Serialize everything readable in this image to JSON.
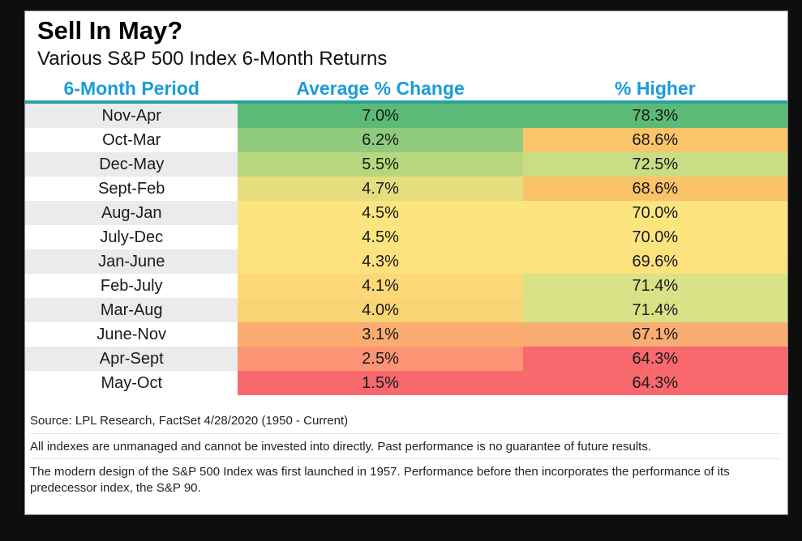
{
  "page": {
    "title": "Sell In May?",
    "subtitle": "Various S&P 500 Index 6-Month Returns"
  },
  "colors": {
    "header_text_blue": "#1a9cd8",
    "header_rule_teal": "#2aa0a0",
    "row_stripe_gray": "#ebebeb",
    "row_stripe_white": "#ffffff",
    "frame_black": "#0e0e0e"
  },
  "table": {
    "headers": [
      "6-Month Period",
      "Average % Change",
      "% Higher"
    ],
    "rows": [
      {
        "period": "Nov-Apr",
        "avg": "7.0%",
        "higher": "78.3%",
        "avg_color": "#5bbb76",
        "higher_color": "#5bbb76",
        "period_bg": "#ebebeb"
      },
      {
        "period": "Oct-Mar",
        "avg": "6.2%",
        "higher": "68.6%",
        "avg_color": "#8fca7e",
        "higher_color": "#fac469",
        "period_bg": "#ffffff"
      },
      {
        "period": "Dec-May",
        "avg": "5.5%",
        "higher": "72.5%",
        "avg_color": "#b8d77d",
        "higher_color": "#c9dd85",
        "period_bg": "#ebebeb"
      },
      {
        "period": "Sept-Feb",
        "avg": "4.7%",
        "higher": "68.6%",
        "avg_color": "#e5de7e",
        "higher_color": "#f9c367",
        "period_bg": "#ffffff"
      },
      {
        "period": "Aug-Jan",
        "avg": "4.5%",
        "higher": "70.0%",
        "avg_color": "#fce47f",
        "higher_color": "#fce47f",
        "period_bg": "#ebebeb"
      },
      {
        "period": "July-Dec",
        "avg": "4.5%",
        "higher": "70.0%",
        "avg_color": "#fce47f",
        "higher_color": "#fce47f",
        "period_bg": "#ffffff"
      },
      {
        "period": "Jan-June",
        "avg": "4.3%",
        "higher": "69.6%",
        "avg_color": "#fce17d",
        "higher_color": "#fce17d",
        "period_bg": "#ebebeb"
      },
      {
        "period": "Feb-July",
        "avg": "4.1%",
        "higher": "71.4%",
        "avg_color": "#fcd878",
        "higher_color": "#d9e287",
        "period_bg": "#ffffff"
      },
      {
        "period": "Mar-Aug",
        "avg": "4.0%",
        "higher": "71.4%",
        "avg_color": "#fbd475",
        "higher_color": "#d9e287",
        "period_bg": "#ebebeb"
      },
      {
        "period": "June-Nov",
        "avg": "3.1%",
        "higher": "67.1%",
        "avg_color": "#fbad71",
        "higher_color": "#f9ad74",
        "period_bg": "#ffffff"
      },
      {
        "period": "Apr-Sept",
        "avg": "2.5%",
        "higher": "64.3%",
        "avg_color": "#fb9474",
        "higher_color": "#f7696d",
        "period_bg": "#ebebeb"
      },
      {
        "period": "May-Oct",
        "avg": "1.5%",
        "higher": "64.3%",
        "avg_color": "#f7696d",
        "higher_color": "#f7696d",
        "period_bg": "#ffffff"
      }
    ]
  },
  "footnotes": [
    "Source: LPL Research, FactSet 4/28/2020 (1950 - Current)",
    "All indexes are unmanaged and cannot be invested into directly. Past performance is no guarantee of future results.",
    "The modern design of the S&P 500 Index was first launched in 1957. Performance before then incorporates the performance of its predecessor index, the S&P 90."
  ],
  "chart_data": {
    "type": "table",
    "title": "Sell In May?",
    "subtitle": "Various S&P 500 Index 6-Month Returns",
    "columns": [
      "6-Month Period",
      "Average % Change",
      "% Higher"
    ],
    "rows": [
      [
        "Nov-Apr",
        7.0,
        78.3
      ],
      [
        "Oct-Mar",
        6.2,
        68.6
      ],
      [
        "Dec-May",
        5.5,
        72.5
      ],
      [
        "Sept-Feb",
        4.7,
        68.6
      ],
      [
        "Aug-Jan",
        4.5,
        70.0
      ],
      [
        "July-Dec",
        4.5,
        70.0
      ],
      [
        "Jan-June",
        4.3,
        69.6
      ],
      [
        "Feb-July",
        4.1,
        71.4
      ],
      [
        "Mar-Aug",
        4.0,
        71.4
      ],
      [
        "June-Nov",
        3.1,
        67.1
      ],
      [
        "Apr-Sept",
        2.5,
        64.3
      ],
      [
        "May-Oct",
        1.5,
        64.3
      ]
    ],
    "units": "%",
    "color_encoding": "heatmap: green = best values, yellow = middle, red = worst values",
    "source": "LPL Research, FactSet 4/28/2020 (1950 - Current)"
  }
}
